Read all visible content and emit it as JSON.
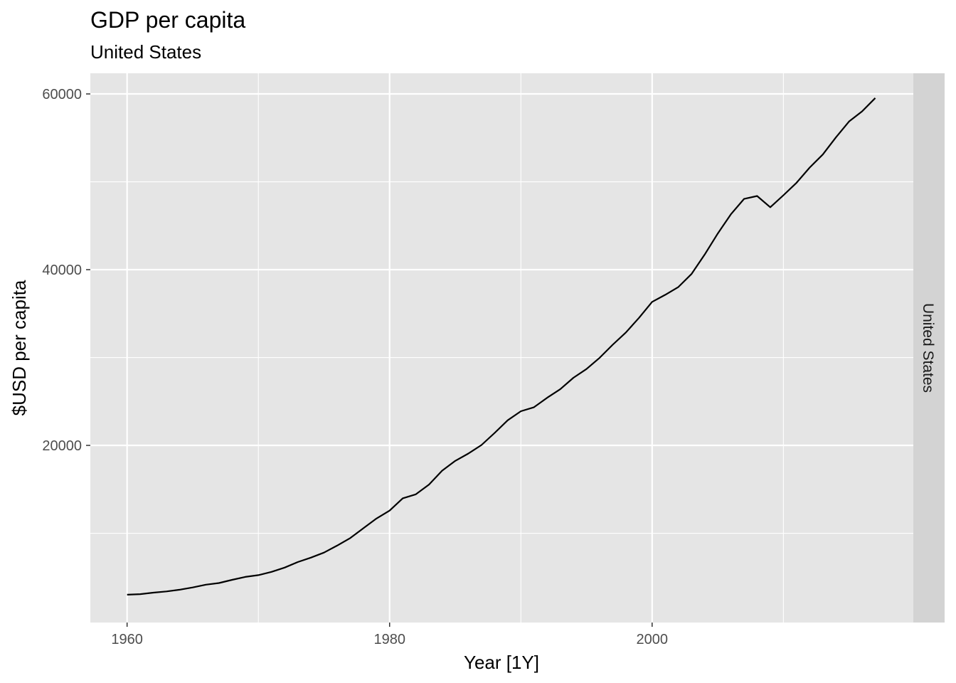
{
  "chart_data": {
    "type": "line",
    "title": "GDP per capita",
    "subtitle": "United States",
    "xlabel": "Year [1Y]",
    "ylabel": "$USD per capita",
    "facet_label": "United States",
    "xlim": [
      1957.2,
      2019.9
    ],
    "ylim": [
      -160,
      62350
    ],
    "x_ticks": [
      1960,
      1980,
      2000
    ],
    "x_tick_labels": [
      "1960",
      "1980",
      "2000"
    ],
    "x_minor": [
      1970,
      1990,
      2010
    ],
    "y_ticks": [
      20000,
      40000,
      60000
    ],
    "y_tick_labels": [
      "20000",
      "40000",
      "60000"
    ],
    "y_minor": [
      10000,
      30000,
      50000
    ],
    "grid": true,
    "colors": {
      "panel": "#e5e5e5",
      "grid": "#ffffff",
      "line": "#000000",
      "strip": "#d3d3d3"
    },
    "series": [
      {
        "x": [
          1960,
          1961,
          1962,
          1963,
          1964,
          1965,
          1966,
          1967,
          1968,
          1969,
          1970,
          1971,
          1972,
          1973,
          1974,
          1975,
          1976,
          1977,
          1978,
          1979,
          1980,
          1981,
          1982,
          1983,
          1984,
          1985,
          1986,
          1987,
          1988,
          1989,
          1990,
          1991,
          1992,
          1993,
          1994,
          1995,
          1996,
          1997,
          1998,
          1999,
          2000,
          2001,
          2002,
          2003,
          2004,
          2005,
          2006,
          2007,
          2008,
          2009,
          2010,
          2011,
          2012,
          2013,
          2014,
          2015,
          2016,
          2017
        ],
        "values": [
          3007,
          3067,
          3244,
          3375,
          3574,
          3828,
          4146,
          4336,
          4696,
          5032,
          5234,
          5609,
          6094,
          6726,
          7226,
          7801,
          8592,
          9453,
          10565,
          11674,
          12575,
          13976,
          14434,
          15544,
          17121,
          18237,
          19071,
          20039,
          21417,
          22857,
          23889,
          24342,
          25419,
          26387,
          27695,
          28691,
          29968,
          31459,
          32854,
          34515,
          36330,
          37134,
          38023,
          39496,
          41713,
          44115,
          46299,
          48050,
          48383,
          47100,
          48467,
          49887,
          51611,
          53106,
          55050,
          56863,
          58022,
          59532
        ]
      }
    ]
  }
}
